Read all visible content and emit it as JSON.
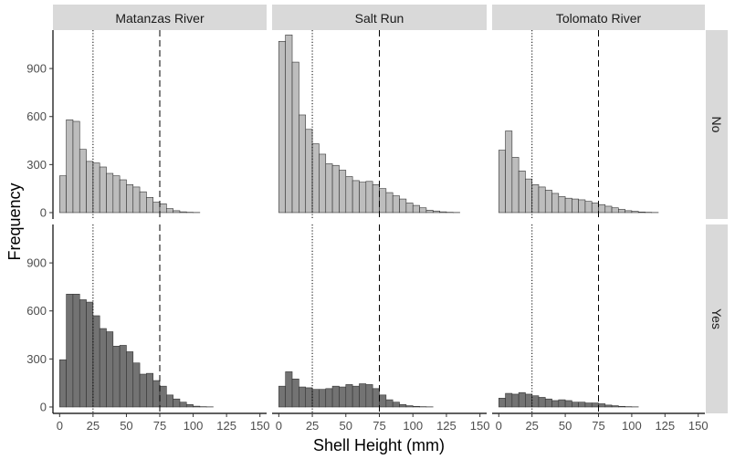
{
  "chart_data": {
    "type": "bar",
    "subtype": "faceted-histogram",
    "xlabel": "Shell Height (mm)",
    "ylabel": "Frequency",
    "xlim": [
      -5,
      155
    ],
    "ylim": [
      -40,
      1140
    ],
    "x_ticks": [
      0,
      25,
      50,
      75,
      100,
      125,
      150
    ],
    "y_ticks": [
      0,
      300,
      600,
      900
    ],
    "bin_width": 5,
    "bin_starts": [
      0,
      5,
      10,
      15,
      20,
      25,
      30,
      35,
      40,
      45,
      50,
      55,
      60,
      65,
      70,
      75,
      80,
      85,
      90,
      95,
      100,
      105,
      110,
      115,
      120,
      125,
      130,
      135,
      140,
      145
    ],
    "reference_lines": [
      {
        "x": 25,
        "style": "dotted"
      },
      {
        "x": 75,
        "style": "dashed"
      }
    ],
    "columns": [
      "Matanzas River",
      "Salt Run",
      "Tolomato River"
    ],
    "rows": [
      "No",
      "Yes"
    ],
    "grid": false,
    "colors": {
      "No": "#bdbdbd",
      "Yes": "#737373",
      "bar_outline": "#333333",
      "strip": "#d9d9d9"
    },
    "panels": [
      {
        "column": "Matanzas River",
        "row": "No",
        "values": [
          230,
          580,
          570,
          395,
          320,
          310,
          285,
          245,
          230,
          205,
          175,
          160,
          130,
          95,
          65,
          55,
          25,
          12,
          5,
          2,
          1,
          0,
          0,
          0,
          0,
          0,
          0,
          0,
          0,
          0
        ]
      },
      {
        "column": "Salt Run",
        "row": "No",
        "values": [
          1070,
          1110,
          940,
          610,
          520,
          430,
          365,
          305,
          295,
          265,
          225,
          200,
          190,
          195,
          175,
          150,
          125,
          105,
          85,
          60,
          45,
          30,
          15,
          10,
          5,
          2,
          1,
          0,
          0,
          0
        ]
      },
      {
        "column": "Tolomato River",
        "row": "No",
        "values": [
          390,
          510,
          345,
          260,
          210,
          175,
          160,
          140,
          120,
          100,
          90,
          85,
          80,
          70,
          60,
          50,
          40,
          30,
          20,
          12,
          8,
          4,
          2,
          1,
          0,
          0,
          0,
          0,
          0,
          0
        ]
      },
      {
        "column": "Matanzas River",
        "row": "Yes",
        "values": [
          295,
          705,
          705,
          670,
          655,
          570,
          490,
          470,
          380,
          385,
          345,
          275,
          205,
          210,
          165,
          130,
          75,
          50,
          30,
          15,
          5,
          2,
          1,
          0,
          0,
          0,
          0,
          0,
          0,
          0
        ]
      },
      {
        "column": "Salt Run",
        "row": "Yes",
        "values": [
          130,
          220,
          175,
          125,
          120,
          110,
          110,
          115,
          130,
          125,
          140,
          130,
          145,
          140,
          115,
          75,
          45,
          30,
          15,
          8,
          4,
          2,
          1,
          0,
          0,
          0,
          0,
          0,
          0,
          0
        ]
      },
      {
        "column": "Tolomato River",
        "row": "Yes",
        "values": [
          55,
          85,
          80,
          90,
          80,
          70,
          60,
          50,
          40,
          45,
          40,
          30,
          30,
          25,
          25,
          20,
          12,
          8,
          4,
          2,
          1,
          0,
          0,
          0,
          0,
          0,
          0,
          0,
          0,
          0
        ]
      }
    ]
  }
}
